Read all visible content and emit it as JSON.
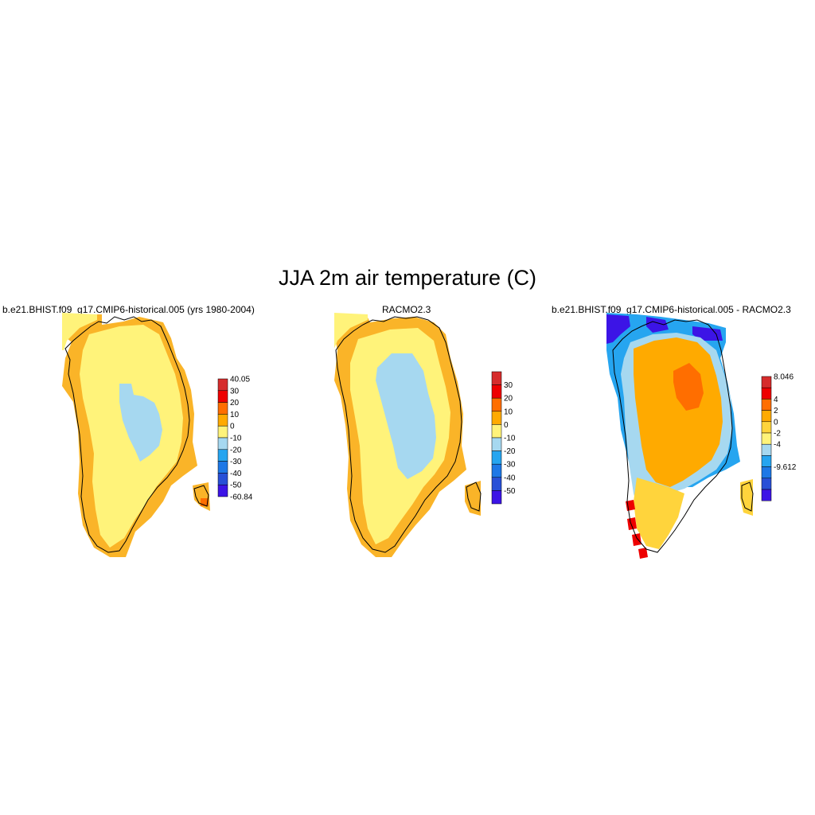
{
  "title": "JJA 2m air temperature (C)",
  "panels": [
    {
      "id": "model",
      "title": "b.e21.BHIST.f09_g17.CMIP6-historical.005 (yrs 1980-2004)",
      "colorbar": {
        "labels": [
          "40.05",
          "30",
          "20",
          "10",
          "0",
          "-10",
          "-20",
          "-30",
          "-40",
          "-50",
          "-60.84"
        ],
        "colors": [
          "#d62c2c",
          "#ee0000",
          "#ff6e00",
          "#ffaa00",
          "#fff37a",
          "#a6d8f0",
          "#26a5f0",
          "#1e78e6",
          "#2850d7",
          "#3c14e6"
        ]
      }
    },
    {
      "id": "racmo",
      "title": "RACMO2.3",
      "colorbar": {
        "labels": [
          "30",
          "20",
          "10",
          "0",
          "-10",
          "-20",
          "-30",
          "-40",
          "-50"
        ],
        "colors": [
          "#d62c2c",
          "#ee0000",
          "#ff6e00",
          "#ffaa00",
          "#fff37a",
          "#a6d8f0",
          "#26a5f0",
          "#1e78e6",
          "#2850d7",
          "#3c14e6"
        ]
      }
    },
    {
      "id": "diff",
      "title": "b.e21.BHIST.f09_g17.CMIP6-historical.005 - RACMO2.3",
      "colorbar": {
        "labels": [
          "8.046",
          "4",
          "2",
          "0",
          "-2",
          "-4",
          "-9.612"
        ],
        "label_steps": [
          0,
          2,
          3,
          4,
          5,
          6,
          8
        ],
        "colors": [
          "#d62c2c",
          "#ee0000",
          "#ff6e00",
          "#ffaa00",
          "#ffd43c",
          "#fff37a",
          "#a6d8f0",
          "#26a5f0",
          "#1e78e6",
          "#2850d7",
          "#3c14e6"
        ]
      }
    }
  ]
}
